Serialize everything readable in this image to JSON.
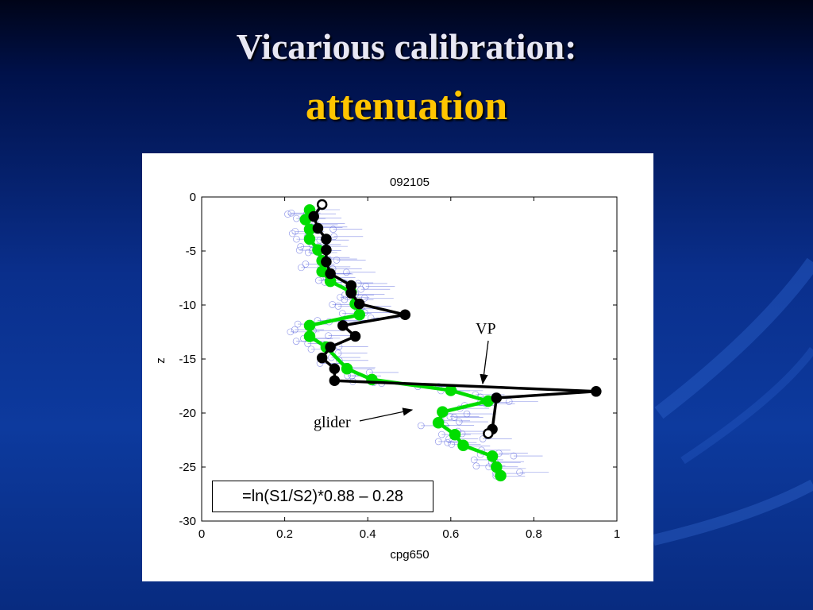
{
  "slide": {
    "title_line1": "Vicarious calibration:",
    "title_line2": "attenuation"
  },
  "chart_data": {
    "type": "line",
    "title": "092105",
    "xlabel": "cpg650",
    "ylabel": "z",
    "xlim": [
      0,
      1
    ],
    "ylim": [
      -30,
      0
    ],
    "xticks": [
      0,
      0.2,
      0.4,
      0.6,
      0.8,
      1
    ],
    "xtick_labels": [
      "0",
      "0.2",
      "0.4",
      "0.6",
      "0.8",
      "1"
    ],
    "yticks": [
      0,
      -5,
      -10,
      -15,
      -20,
      -25,
      -30
    ],
    "ytick_labels": [
      "0",
      "-5",
      "-10",
      "-15",
      "-20",
      "-25",
      "-30"
    ],
    "grid": false,
    "formula": "=ln(S1/S2)*0.88 – 0.28",
    "annotations": [
      {
        "text": "VP",
        "x": 0.69,
        "y": -17.3
      },
      {
        "text": "glider",
        "x": 0.51,
        "y": -20.0
      }
    ],
    "colors": {
      "vp": "#000000",
      "glider": "#00dd00",
      "raw": "#5560dd"
    },
    "series": [
      {
        "key": "vp",
        "x": [
          0.29,
          0.27,
          0.28,
          0.3,
          0.3,
          0.3,
          0.31,
          0.36,
          0.36,
          0.38,
          0.49,
          0.34,
          0.37,
          0.31,
          0.29,
          0.32,
          0.32,
          0.95,
          0.71,
          0.7,
          0.69
        ],
        "y": [
          -0.7,
          -1.8,
          -2.9,
          -3.9,
          -4.9,
          -6.0,
          -7.1,
          -8.2,
          -8.9,
          -9.9,
          -10.9,
          -11.9,
          -12.9,
          -13.9,
          -14.9,
          -15.9,
          -17.0,
          -18.0,
          -18.6,
          -21.5,
          -21.9
        ]
      },
      {
        "key": "glider",
        "x": [
          0.26,
          0.25,
          0.26,
          0.26,
          0.28,
          0.29,
          0.29,
          0.31,
          0.36,
          0.37,
          0.38,
          0.26,
          0.26,
          0.3,
          0.35,
          0.41,
          0.6,
          0.69,
          0.58,
          0.57,
          0.61,
          0.63,
          0.7,
          0.71,
          0.72
        ],
        "y": [
          -1.2,
          -2.1,
          -3.0,
          -3.9,
          -4.9,
          -5.9,
          -6.9,
          -7.8,
          -8.8,
          -9.9,
          -10.9,
          -11.9,
          -12.9,
          -13.9,
          -15.9,
          -16.9,
          -17.9,
          -18.9,
          -19.9,
          -20.9,
          -22.0,
          -23.0,
          -24.0,
          -25.0,
          -25.8
        ]
      }
    ]
  }
}
